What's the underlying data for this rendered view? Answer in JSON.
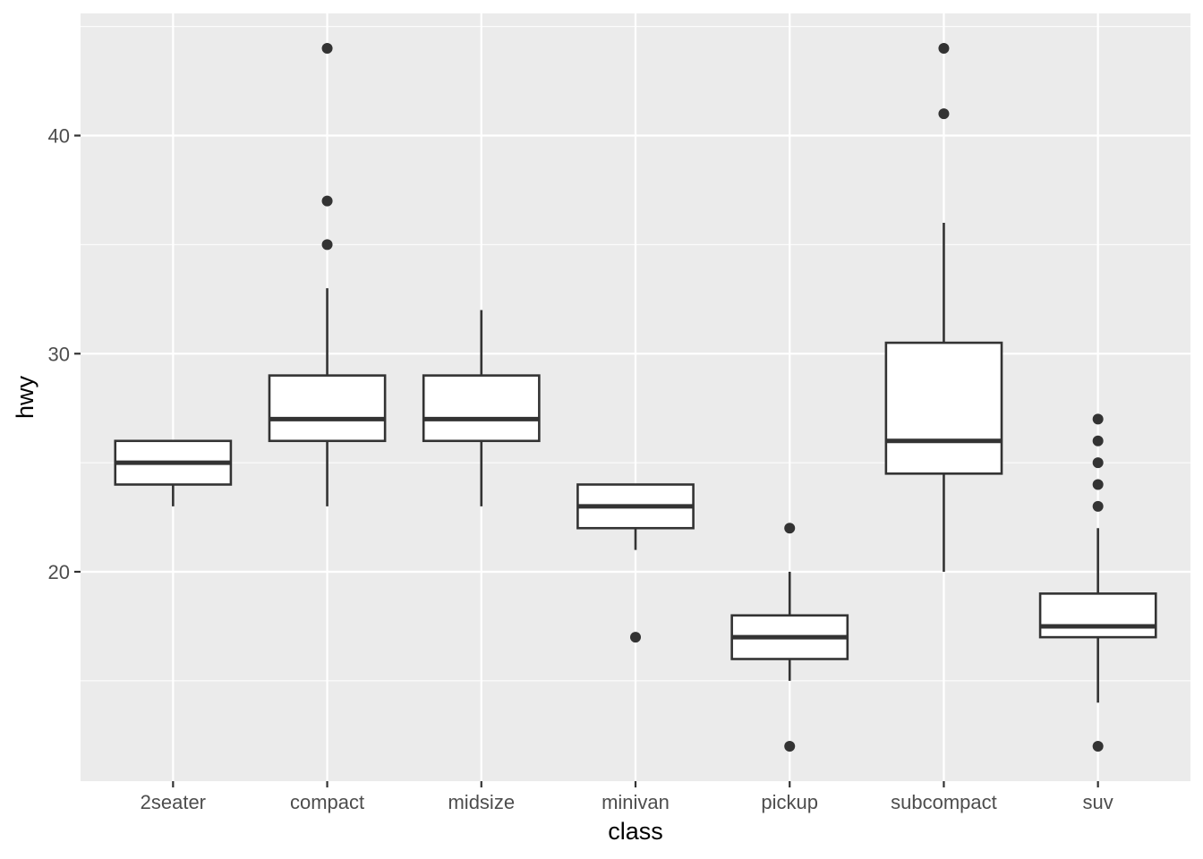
{
  "chart_data": {
    "type": "box",
    "title": "",
    "xlabel": "class",
    "ylabel": "hwy",
    "ylim": [
      10.4,
      45.6
    ],
    "y_ticks": [
      20,
      30,
      40
    ],
    "y_minor_ticks": [
      15,
      25,
      35,
      45
    ],
    "grid": true,
    "legend": "none",
    "categories": [
      "2seater",
      "compact",
      "midsize",
      "minivan",
      "pickup",
      "subcompact",
      "suv"
    ],
    "boxes": [
      {
        "category": "2seater",
        "lower": 23,
        "q1": 24,
        "median": 25,
        "q3": 26,
        "upper": 26,
        "outliers": []
      },
      {
        "category": "compact",
        "lower": 23,
        "q1": 26,
        "median": 27,
        "q3": 29,
        "upper": 33,
        "outliers": [
          35,
          37,
          44
        ]
      },
      {
        "category": "midsize",
        "lower": 23,
        "q1": 26,
        "median": 27,
        "q3": 29,
        "upper": 32,
        "outliers": []
      },
      {
        "category": "minivan",
        "lower": 21,
        "q1": 22,
        "median": 23,
        "q3": 24,
        "upper": 24,
        "outliers": [
          17
        ]
      },
      {
        "category": "pickup",
        "lower": 15,
        "q1": 16,
        "median": 17,
        "q3": 18,
        "upper": 20,
        "outliers": [
          12,
          22
        ]
      },
      {
        "category": "subcompact",
        "lower": 20,
        "q1": 24.5,
        "median": 26,
        "q3": 30.5,
        "upper": 36,
        "outliers": [
          41,
          44
        ]
      },
      {
        "category": "suv",
        "lower": 14,
        "q1": 17,
        "median": 17.5,
        "q3": 19,
        "upper": 22,
        "outliers": [
          12,
          23,
          24,
          25,
          26,
          27
        ]
      }
    ],
    "colors": {
      "panel": "#ebebeb",
      "grid": "#ffffff",
      "box_fill": "#ffffff",
      "box_stroke": "#333333",
      "point": "#333333",
      "tick": "#333333",
      "tick_text": "#4d4d4d"
    }
  }
}
